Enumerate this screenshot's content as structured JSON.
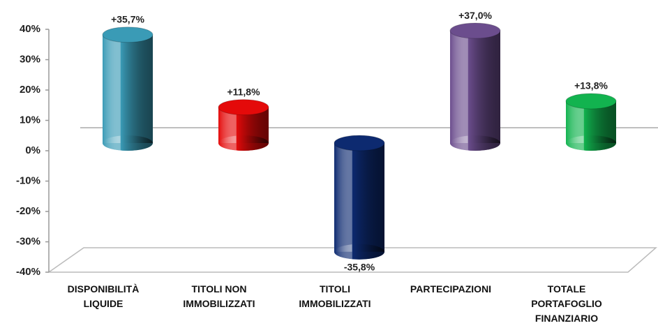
{
  "chart_data": {
    "type": "bar",
    "categories": [
      "DISPONIBILITÀ LIQUIDE",
      "TITOLI NON IMMOBILIZZATI",
      "TITOLI IMMOBILIZZATI",
      "PARTECIPAZIONI",
      "TOTALE PORTAFOGLIO FINANZIARIO"
    ],
    "values": [
      35.7,
      11.8,
      -35.8,
      37.0,
      13.8
    ],
    "value_labels": [
      "+35,7%",
      "+11,8%",
      "-35,8%",
      "+37,0%",
      "+13,8%"
    ],
    "colors": [
      "#3a9bb6",
      "#e40a0a",
      "#0d2a70",
      "#6b4d8d",
      "#12b34f"
    ],
    "ylim": [
      -40,
      40
    ],
    "yticks": [
      {
        "value": -40,
        "label": "-40%"
      },
      {
        "value": -30,
        "label": "-30%"
      },
      {
        "value": -20,
        "label": "-20%"
      },
      {
        "value": -10,
        "label": "-10%"
      },
      {
        "value": 0,
        "label": "0%"
      },
      {
        "value": 10,
        "label": "10%"
      },
      {
        "value": 20,
        "label": "20%"
      },
      {
        "value": 30,
        "label": "30%"
      },
      {
        "value": 40,
        "label": "40%"
      }
    ]
  }
}
